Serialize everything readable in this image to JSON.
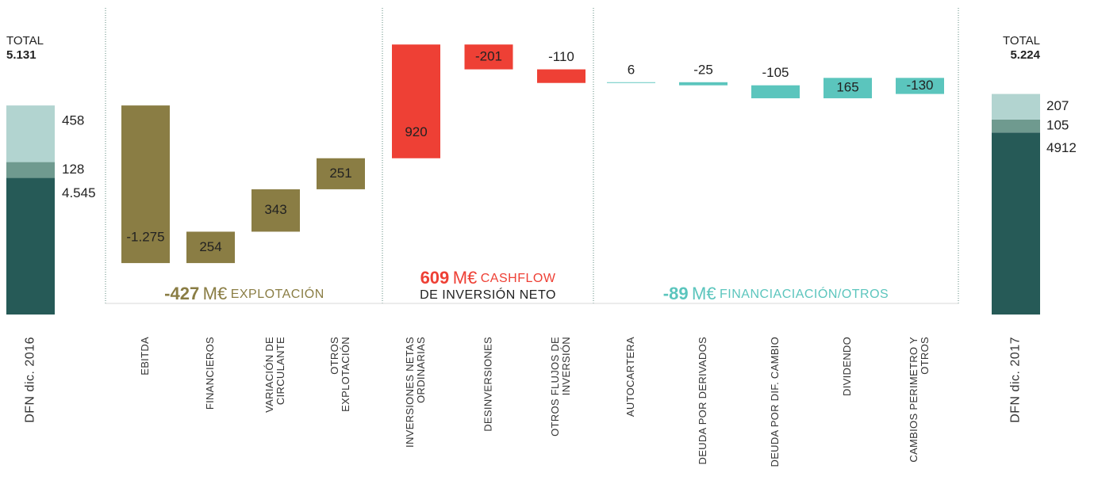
{
  "chart_data": {
    "type": "waterfall",
    "ylim": [
      3440,
      5920
    ],
    "start": {
      "category": [
        "DFN dic. 2016"
      ],
      "total_title": "TOTAL",
      "total": 5131,
      "total_label": "5.131",
      "values": [
        4545,
        128,
        458
      ],
      "value_labels": [
        "4.545",
        "128",
        "458"
      ],
      "colors": [
        "#265a57",
        "#6f9a8f",
        "#b2d4d0"
      ]
    },
    "groups": [
      {
        "total": -427,
        "unit": "M€",
        "name": [
          "EXPLOTACIÓN"
        ],
        "color": "#8a7d44",
        "categories": [
          [
            "EBITDA"
          ],
          [
            "FINANCIEROS"
          ],
          [
            "VARIACIÓN DE",
            "CIRCULANTE"
          ],
          [
            "OTROS",
            "EXPLOTACIÓN"
          ]
        ],
        "values": [
          -1275,
          254,
          343,
          251
        ],
        "value_labels": [
          "-1.275",
          "254",
          "343",
          "251"
        ]
      },
      {
        "total": 609,
        "unit": "M€",
        "name": [
          "CASHFLOW",
          "DE INVERSIÓN NETO"
        ],
        "color": "#ee4035",
        "categories": [
          [
            "INVERSIONES NETAS",
            "ORDINARIAS"
          ],
          [
            "DESINVERSIONES"
          ],
          [
            "OTROS FLUJOS DE",
            "INVERSIÓN"
          ]
        ],
        "values": [
          920,
          -201,
          -110
        ],
        "value_labels": [
          "920",
          "-201",
          "-110"
        ]
      },
      {
        "total": -89,
        "unit": "M€",
        "name": [
          "FINANCIACIACIÓN/OTROS"
        ],
        "color": "#5bc5bd",
        "categories": [
          [
            "AUTOCARTERA"
          ],
          [
            "DEUDA POR DERIVADOS"
          ],
          [
            "DEUDA POR DIF. CAMBIO"
          ],
          [
            "DIVIDENDO"
          ],
          [
            "CAMBIOS PERIMETRO Y",
            "OTROS"
          ]
        ],
        "values": [
          6,
          -25,
          -105,
          165,
          -130
        ],
        "value_labels": [
          "6",
          "-25",
          "-105",
          "165",
          "-130"
        ]
      }
    ],
    "end": {
      "category": [
        "DFN dic. 2017"
      ],
      "total_title": "TOTAL",
      "total": 5224,
      "total_label": "5.224",
      "values": [
        4912,
        105,
        207
      ],
      "value_labels": [
        "4912",
        "105",
        "207"
      ],
      "colors": [
        "#265a57",
        "#6f9a8f",
        "#b2d4d0"
      ]
    }
  }
}
